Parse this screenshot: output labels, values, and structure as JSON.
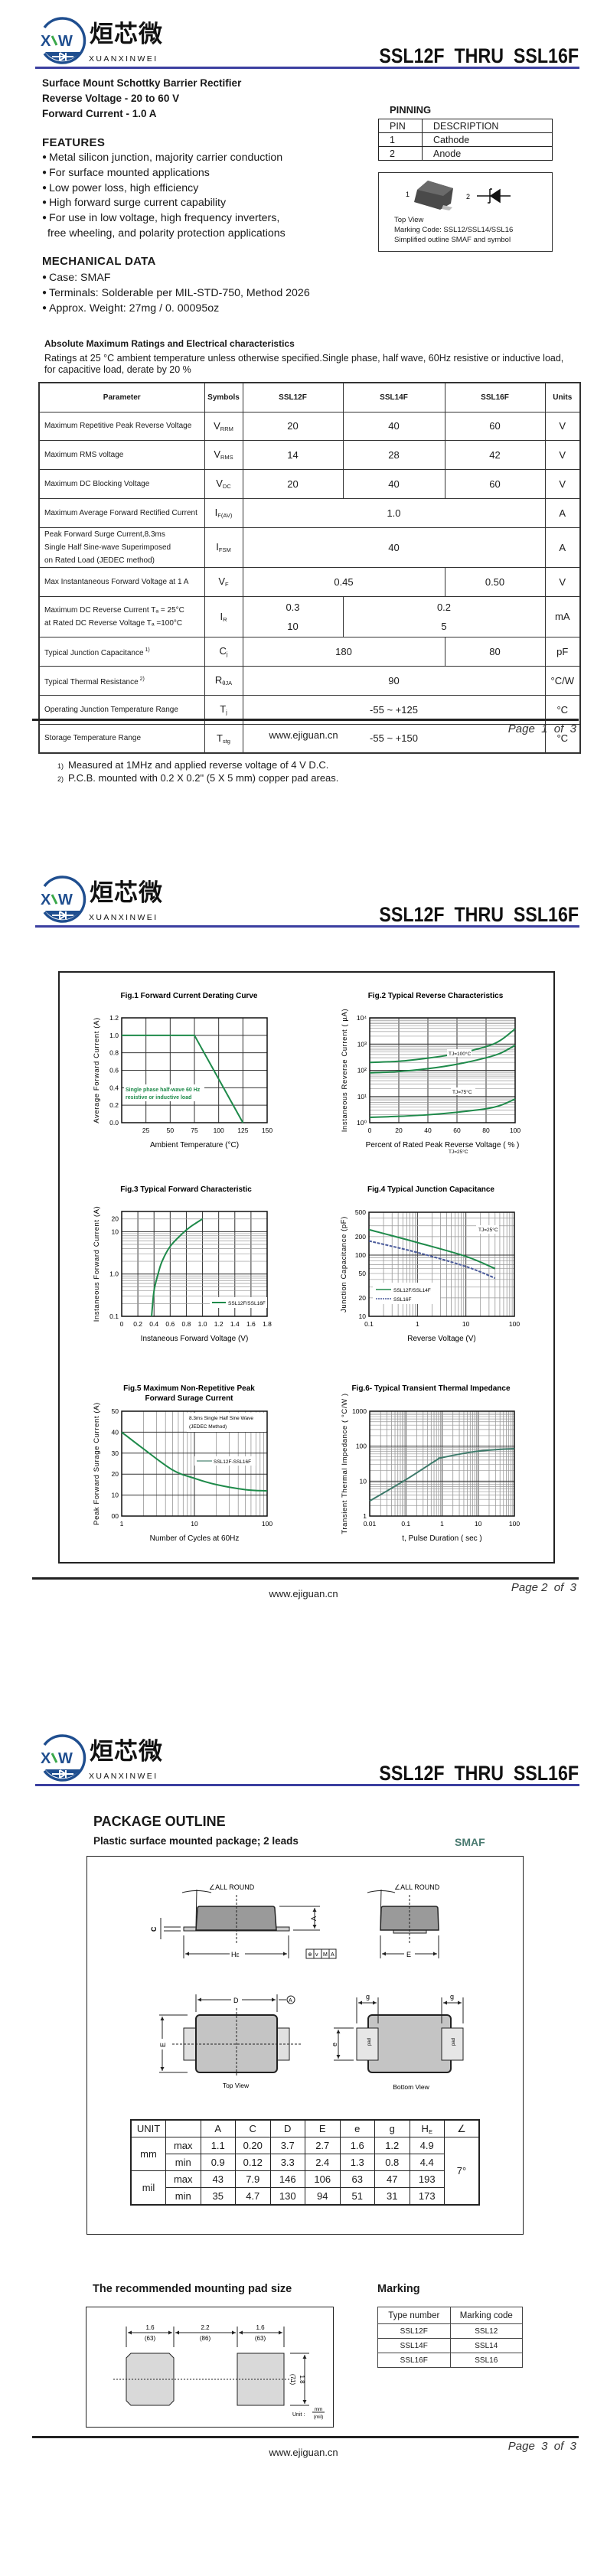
{
  "header": {
    "logo_mark": "XW",
    "logo_cn": "烜芯微",
    "logo_en": "XUANXINWEI",
    "title": "SSL12F  THRU  SSL16F"
  },
  "footer": {
    "url": "www.ejiguan.cn",
    "pages": [
      "Page  1  of  3",
      "Page 2  of  3",
      "Page  3  of  3"
    ]
  },
  "colors": {
    "rule": "#3b3fa0",
    "curve": "#1e8a4a",
    "curve_alt": "#4a5a9a",
    "smaf": "#4a7a70"
  },
  "page1": {
    "summary": [
      "Surface Mount Schottky Barrier Rectifier",
      "Reverse Voltage - 20 to 60 V",
      "Forward Current - 1.0 A"
    ],
    "features": {
      "heading": "FEATURES",
      "items": [
        "Metal silicon junction, majority carrier conduction",
        "For surface mounted applications",
        "Low power loss, high efficiency",
        "High forward surge current capability",
        "For use in low voltage, high frequency inverters,"
      ],
      "continuation": "free wheeling, and polarity protection applications"
    },
    "mechanical": {
      "heading": "MECHANICAL DATA",
      "items": [
        "Case: SMAF",
        "Terminals: Solderable per MIL-STD-750, Method 2026",
        "Approx. Weight:  27mg / 0. 00095oz"
      ]
    },
    "pinning": {
      "heading": "PINNING",
      "columns": [
        "PIN",
        "DESCRIPTION"
      ],
      "rows": [
        [
          "1",
          "Cathode"
        ],
        [
          "2",
          "Anode"
        ]
      ],
      "image": {
        "pin1": "1",
        "pin2": "2",
        "caption": [
          "Top View",
          "Marking Code:  SSL12/SSL14/SSL16",
          "Simplified outline SMAF and symbol"
        ]
      }
    },
    "ratings": {
      "title": "Absolute Maximum Ratings and Electrical characteristics",
      "notes": [
        "Ratings at 25 °C ambient temperature unless otherwise specified.Single phase, half wave, 60Hz resistive or inductive load,",
        "for capacitive load, derate by 20 %"
      ],
      "header": [
        "Parameter",
        "Symbols",
        "SSL12F",
        "SSL14F",
        "SSL16F",
        "Units"
      ],
      "rows": [
        {
          "param": "Maximum Repetitive Peak Reverse Voltage",
          "sym": "V",
          "sub": "RRM",
          "values": [
            {
              "t": "20",
              "span": 1
            },
            {
              "t": "40",
              "span": 1
            },
            {
              "t": "60",
              "span": 1
            }
          ],
          "unit": "V"
        },
        {
          "param": "Maximum RMS voltage",
          "sym": "V",
          "sub": "RMS",
          "values": [
            {
              "t": "14",
              "span": 1
            },
            {
              "t": "28",
              "span": 1
            },
            {
              "t": "42",
              "span": 1
            }
          ],
          "unit": "V"
        },
        {
          "param": "Maximum DC Blocking Voltage",
          "sym": "V",
          "sub": "DC",
          "values": [
            {
              "t": "20",
              "span": 1
            },
            {
              "t": "40",
              "span": 1
            },
            {
              "t": "60",
              "span": 1
            }
          ],
          "unit": "V"
        },
        {
          "param": "Maximum Average Forward Rectified Current",
          "sym": "I",
          "sub": "F(AV)",
          "values": [
            {
              "t": "1.0",
              "span": 3
            }
          ],
          "unit": "A"
        },
        {
          "param": "Peak Forward Surge Current,8.3ms\nSingle Half Sine-wave Superimposed\non Rated Load (JEDEC method)",
          "sym": "I",
          "sub": "FSM",
          "values": [
            {
              "t": "40",
              "span": 3
            }
          ],
          "unit": "A"
        },
        {
          "param": "Max Instantaneous Forward Voltage at 1 A",
          "sym": "V",
          "sub": "F",
          "values": [
            {
              "t": "0.45",
              "span": 2
            },
            {
              "t": "0.50",
              "span": 1
            }
          ],
          "unit": "V"
        },
        {
          "param": "Maximum DC Reverse Current    Tₐ = 25°C\nat Rated DC Reverse Voltage     Tₐ =100°C",
          "sym": "I",
          "sub": "R",
          "values": [
            {
              "t": "0.3\n10",
              "span": 1
            },
            {
              "t": "0.2\n5",
              "span": 2
            }
          ],
          "unit": "mA"
        },
        {
          "param": "Typical Junction Capacitance",
          "note": "1)",
          "sym": "C",
          "sub": "j",
          "values": [
            {
              "t": "180",
              "span": 2
            },
            {
              "t": "80",
              "span": 1
            }
          ],
          "unit": "pF"
        },
        {
          "param": "Typical Thermal Resistance",
          "note": "2)",
          "sym": "R",
          "sub": "θJA",
          "values": [
            {
              "t": "90",
              "span": 3
            }
          ],
          "unit": "°C/W"
        },
        {
          "param": "Operating Junction Temperature Range",
          "sym": "T",
          "sub": "j",
          "values": [
            {
              "t": "-55 ~ +125",
              "span": 3
            }
          ],
          "unit": "°C"
        },
        {
          "param": "Storage Temperature Range",
          "sym": "T",
          "sub": "stg",
          "values": [
            {
              "t": "-55 ~ +150",
              "span": 3
            }
          ],
          "unit": "°C"
        }
      ],
      "footnotes": [
        {
          "n": "1)",
          "t": "Measured at 1MHz and applied reverse voltage of 4 V D.C."
        },
        {
          "n": "2)",
          "t": "P.C.B. mounted with 0.2 X 0.2\" (5 X 5 mm) copper pad areas."
        }
      ]
    }
  },
  "page2": {
    "chart_data": [
      {
        "id": "fig1",
        "type": "line",
        "title": [
          "Fig.1  Forward Current Derating Curve"
        ],
        "xlabel": "Ambient  Temperature (°C)",
        "ylabel": "Average Forward Current (A)",
        "x_axis": {
          "scale": "linear",
          "range": [
            0,
            150
          ],
          "ticks": [
            25,
            50,
            75,
            100,
            125,
            150
          ],
          "tick_labels": [
            "25",
            "50",
            "75",
            "100",
            "125",
            "150"
          ]
        },
        "y_axis": {
          "scale": "linear",
          "range": [
            0,
            1.2
          ],
          "ticks": [
            0,
            0.2,
            0.4,
            0.6,
            0.8,
            1.0,
            1.2
          ],
          "tick_labels": [
            "0.0",
            "0.2",
            "0.4",
            "0.6",
            "0.8",
            "1.0",
            "1.2"
          ]
        },
        "grid": true,
        "series": [
          {
            "x": [
              0,
              75,
              125
            ],
            "y": [
              1.0,
              1.0,
              0
            ]
          }
        ],
        "annotations": [
          "Single phase half-wave 60 Hz",
          "resistive or inductive load"
        ]
      },
      {
        "id": "fig2",
        "type": "line",
        "title": [
          "Fig.2  Typical Reverse Characteristics"
        ],
        "xlabel": "Percent of Rated Peak Reverse Voltage ( % )",
        "ylabel": "Instaneous  Reverse  Current ( µA)",
        "x_axis": {
          "scale": "linear",
          "range": [
            0,
            100
          ],
          "ticks": [
            0,
            20,
            40,
            60,
            80,
            100
          ],
          "tick_labels": [
            "0",
            "20",
            "40",
            "60",
            "80",
            "100"
          ]
        },
        "y_axis": {
          "scale": "log",
          "range": [
            1,
            10000
          ],
          "ticks": [
            1,
            10,
            100,
            1000,
            10000
          ],
          "tick_labels": [
            "10⁰",
            "10¹",
            "10²",
            "10³",
            "10⁴"
          ]
        },
        "grid": true,
        "series": [
          {
            "name": "TJ=100°C",
            "x": [
              0,
              20,
              40,
              60,
              80,
              90,
              100
            ],
            "y": [
              200,
              220,
              290,
              430,
              800,
              1400,
              3800
            ]
          },
          {
            "name": "TJ=75°C",
            "x": [
              0,
              20,
              40,
              60,
              80,
              90,
              100
            ],
            "y": [
              80,
              90,
              115,
              170,
              300,
              450,
              900
            ]
          },
          {
            "name": "TJ=25°C",
            "x": [
              0,
              20,
              40,
              60,
              80,
              90,
              100
            ],
            "y": [
              1.6,
              1.75,
              2.0,
              2.5,
              3.4,
              4.6,
              8
            ]
          }
        ]
      },
      {
        "id": "fig3",
        "type": "line",
        "title": [
          "Fig.3  Typical Forward Characteristic"
        ],
        "xlabel": "Instaneous Forward Voltage (V)",
        "ylabel": "Instaneous Forward Current  (A)",
        "x_axis": {
          "scale": "linear",
          "range": [
            0,
            1.8
          ],
          "ticks": [
            0,
            0.2,
            0.4,
            0.6,
            0.8,
            1.0,
            1.2,
            1.4,
            1.6,
            1.8
          ],
          "tick_labels": [
            "0",
            "0.2",
            "0.4",
            "0.6",
            "0.8",
            "1.0",
            "1.2",
            "1.4",
            "1.6",
            "1.8"
          ]
        },
        "y_axis": {
          "scale": "log",
          "range": [
            0.1,
            30
          ],
          "ticks": [
            0.1,
            1,
            10,
            20
          ],
          "tick_labels": [
            "0.1",
            "1.0",
            "10",
            "20"
          ]
        },
        "grid": true,
        "legend": "right",
        "series": [
          {
            "name": "SSL12F/SSL16F",
            "x": [
              0.37,
              0.4,
              0.45,
              0.5,
              0.6,
              0.75,
              0.85,
              1.0
            ],
            "y": [
              0.1,
              0.4,
              1.0,
              2.0,
              4.5,
              9,
              13,
              20
            ]
          }
        ]
      },
      {
        "id": "fig4",
        "type": "line",
        "title": [
          "Fig.4  Typical Junction Capacitance"
        ],
        "xlabel": "Reverse  Voltage (V)",
        "ylabel": "Junction Capacitance (pF)",
        "x_axis": {
          "scale": "log",
          "range": [
            0.1,
            100
          ],
          "ticks": [
            0.1,
            1,
            10,
            100
          ],
          "tick_labels": [
            "0.1",
            "1",
            "10",
            "100"
          ]
        },
        "y_axis": {
          "scale": "log",
          "range": [
            10,
            500
          ],
          "ticks": [
            10,
            20,
            50,
            100,
            200,
            500
          ],
          "tick_labels": [
            "10",
            "20",
            "50",
            "100",
            "200",
            "500"
          ]
        },
        "grid": true,
        "legend": "bottom-left",
        "annotations": [
          "TJ=25°C"
        ],
        "series": [
          {
            "name": "SSL12F/SSL14F",
            "x": [
              0.1,
              1,
              10,
              40
            ],
            "y": [
              260,
              160,
              95,
              60
            ]
          },
          {
            "name": "SSL16F",
            "x": [
              0.1,
              1,
              10,
              40
            ],
            "y": [
              170,
              110,
              65,
              42
            ]
          }
        ]
      },
      {
        "id": "fig5",
        "type": "line",
        "title": [
          "Fig.5  Maximum Non-Repetitive Peak",
          "Forward Surage Current"
        ],
        "xlabel": "Number of Cycles at 60Hz",
        "ylabel": "Peak Forward Surage Current (A)",
        "x_axis": {
          "scale": "log",
          "range": [
            1,
            100
          ],
          "ticks": [
            1,
            10,
            100
          ],
          "tick_labels": [
            "1",
            "10",
            "100"
          ]
        },
        "y_axis": {
          "scale": "linear",
          "range": [
            0,
            50
          ],
          "ticks": [
            0,
            10,
            20,
            30,
            40,
            50
          ],
          "tick_labels": [
            "00",
            "10",
            "20",
            "30",
            "40",
            "50"
          ]
        },
        "grid": true,
        "legend": "right",
        "annotations": [
          "8.3ms Single Half Sine Wave",
          "(JEDEC Method)"
        ],
        "series": [
          {
            "name": "SSL12F-SSL16F",
            "x": [
              1,
              2,
              5,
              10,
              20,
              50,
              100
            ],
            "y": [
              40,
              32,
              22,
              18,
              15,
              12.6,
              12
            ]
          }
        ]
      },
      {
        "id": "fig6",
        "type": "line",
        "title": [
          "Fig.6- Typical Transient Thermal Impedance"
        ],
        "xlabel": "t, Pulse Duration ( sec )",
        "ylabel": "Transient Thermal Impedance ( °C/W )",
        "x_axis": {
          "scale": "log",
          "range": [
            0.01,
            100
          ],
          "ticks": [
            0.01,
            0.1,
            1,
            10,
            100
          ],
          "tick_labels": [
            "0.01",
            "0.1",
            "1",
            "10",
            "100"
          ]
        },
        "y_axis": {
          "scale": "log",
          "range": [
            1,
            1000
          ],
          "ticks": [
            1,
            10,
            100,
            1000
          ],
          "tick_labels": [
            "1",
            "10",
            "100",
            "1000"
          ]
        },
        "grid": true,
        "series": [
          {
            "x": [
              0.01,
              0.1,
              0.7,
              1,
              10,
              100
            ],
            "y": [
              2.7,
              11,
              40,
              47,
              72,
              85
            ]
          }
        ]
      }
    ]
  },
  "page3": {
    "heading": "PACKAGE  OUTLINE",
    "subheading": "Plastic surface mounted package; 2 leads",
    "package_name": "SMAF",
    "drawing": {
      "all_round": "∠ALL ROUND",
      "A": "A",
      "C": "C",
      "HE": "H",
      "HE_sub": "E",
      "E": "E",
      "D": "D",
      "e": "e",
      "g": "g",
      "pad": "pad",
      "datum": "A",
      "tol": [
        "⊕",
        "v",
        "M",
        "A"
      ],
      "top_view": "Top View",
      "bottom_view": "Bottom View"
    },
    "dimensions": {
      "header": [
        "UNIT",
        "",
        "A",
        "C",
        "D",
        "E",
        "e",
        "g",
        "H",
        "∠"
      ],
      "header_sub_HE": "E",
      "angle": "7°",
      "units": [
        "mm",
        "mil"
      ],
      "rows": [
        {
          "label": "max",
          "values": [
            "1.1",
            "0.20",
            "3.7",
            "2.7",
            "1.6",
            "1.2",
            "4.9"
          ]
        },
        {
          "label": "min",
          "values": [
            "0.9",
            "0.12",
            "3.3",
            "2.4",
            "1.3",
            "0.8",
            "4.4"
          ]
        },
        {
          "label": "max",
          "values": [
            "43",
            "7.9",
            "146",
            "106",
            "63",
            "47",
            "193"
          ]
        },
        {
          "label": "min",
          "values": [
            "35",
            "4.7",
            "130",
            "94",
            "51",
            "31",
            "173"
          ]
        }
      ]
    },
    "mounting": {
      "heading": "The recommended mounting pad size",
      "dims": [
        {
          "mm": "1.6",
          "mil": "(63)"
        },
        {
          "mm": "2.2",
          "mil": "(86)"
        },
        {
          "mm": "1.6",
          "mil": "(63)"
        }
      ],
      "height": {
        "mm": "1.8",
        "mil": "(71)"
      },
      "unit_label": "Unit :",
      "unit_num": "mm",
      "unit_den": "(mil)"
    },
    "marking": {
      "heading": "Marking",
      "columns": [
        "Type number",
        "Marking code"
      ],
      "rows": [
        [
          "SSL12F",
          "SSL12"
        ],
        [
          "SSL14F",
          "SSL14"
        ],
        [
          "SSL16F",
          "SSL16"
        ]
      ]
    }
  }
}
